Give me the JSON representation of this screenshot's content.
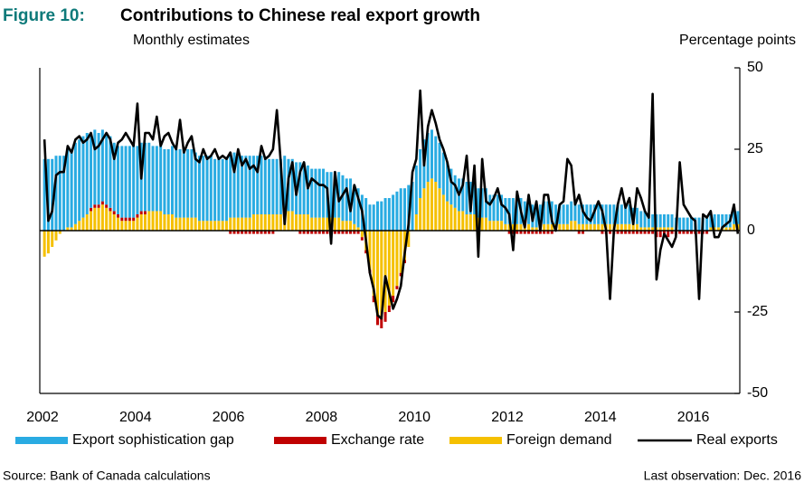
{
  "figure_label": "Figure 10:",
  "chart_data": {
    "type": "bar",
    "stacked": true,
    "title": "Contributions to Chinese real export growth",
    "subtitle": "Monthly estimates",
    "y_axis_label": "Percentage points",
    "ylim": [
      -50,
      50
    ],
    "yticks": [
      -50,
      -25,
      0,
      25,
      50
    ],
    "categories": [
      "2002",
      null,
      null,
      null,
      null,
      null,
      null,
      null,
      null,
      null,
      null,
      null,
      null,
      null,
      null,
      null,
      null,
      null,
      null,
      null,
      null,
      null,
      null,
      null,
      "2004",
      null,
      null,
      null,
      null,
      null,
      null,
      null,
      null,
      null,
      null,
      null,
      null,
      null,
      null,
      null,
      null,
      null,
      null,
      null,
      null,
      null,
      null,
      null,
      "2006",
      null,
      null,
      null,
      null,
      null,
      null,
      null,
      null,
      null,
      null,
      null,
      null,
      null,
      null,
      null,
      null,
      null,
      null,
      null,
      null,
      null,
      null,
      null,
      "2008",
      null,
      null,
      null,
      null,
      null,
      null,
      null,
      null,
      null,
      null,
      null,
      null,
      null,
      null,
      null,
      null,
      null,
      null,
      null,
      null,
      null,
      null,
      null,
      "2010",
      null,
      null,
      null,
      null,
      null,
      null,
      null,
      null,
      null,
      null,
      null,
      null,
      null,
      null,
      null,
      null,
      null,
      null,
      null,
      null,
      null,
      null,
      null,
      "2012",
      null,
      null,
      null,
      null,
      null,
      null,
      null,
      null,
      null,
      null,
      null,
      null,
      null,
      null,
      null,
      null,
      null,
      null,
      null,
      null,
      null,
      null,
      null,
      "2014",
      null,
      null,
      null,
      null,
      null,
      null,
      null,
      null,
      null,
      null,
      null,
      null,
      null,
      null,
      null,
      null,
      null,
      null,
      null,
      null,
      null,
      null,
      null,
      "2016",
      null,
      null,
      null,
      null,
      null,
      null,
      null,
      null,
      null,
      null,
      null
    ],
    "series": [
      {
        "name": "Export sophistication gap",
        "color": "#29abe2",
        "values": [
          22,
          22,
          22,
          23,
          23,
          23,
          24,
          24,
          25,
          25,
          25,
          25,
          23,
          23,
          22,
          22,
          22,
          22,
          21,
          21,
          22,
          22,
          22,
          22,
          21,
          21,
          21,
          21,
          20,
          20,
          20,
          20,
          20,
          21,
          21,
          21,
          21,
          21,
          21,
          20,
          20,
          20,
          20,
          20,
          19,
          19,
          19,
          19,
          20,
          20,
          19,
          19,
          19,
          19,
          18,
          18,
          18,
          17,
          17,
          17,
          17,
          17,
          17,
          16,
          16,
          16,
          16,
          16,
          15,
          15,
          15,
          15,
          15,
          14,
          14,
          14,
          14,
          14,
          13,
          13,
          12,
          12,
          11,
          10,
          8,
          8,
          9,
          9,
          10,
          10,
          11,
          12,
          13,
          13,
          14,
          15,
          15,
          15,
          15,
          15,
          15,
          14,
          14,
          13,
          12,
          11,
          10,
          10,
          10,
          10,
          10,
          9,
          9,
          9,
          9,
          8,
          8,
          8,
          8,
          8,
          8,
          8,
          8,
          8,
          7,
          7,
          7,
          7,
          7,
          7,
          7,
          7,
          6,
          6,
          6,
          6,
          6,
          6,
          6,
          6,
          6,
          6,
          6,
          6,
          6,
          6,
          6,
          6,
          6,
          6,
          6,
          6,
          5,
          5,
          5,
          5,
          4,
          4,
          4,
          4,
          4,
          4,
          4,
          4,
          4,
          4,
          4,
          4,
          4,
          4,
          4,
          4,
          4,
          4,
          4,
          4,
          4,
          4,
          4,
          4
        ]
      },
      {
        "name": "Exchange rate",
        "color": "#c00000",
        "values": [
          0,
          0,
          0,
          0,
          0,
          0,
          0,
          0,
          0,
          0,
          0,
          0,
          1,
          1,
          1,
          1,
          1,
          1,
          1,
          1,
          1,
          1,
          1,
          1,
          1,
          1,
          1,
          0,
          0,
          0,
          0,
          0,
          0,
          0,
          0,
          0,
          0,
          0,
          0,
          0,
          0,
          0,
          0,
          0,
          0,
          0,
          0,
          0,
          -1,
          -1,
          -1,
          -1,
          -1,
          -1,
          -1,
          -1,
          -1,
          -1,
          -1,
          -1,
          0,
          0,
          0,
          0,
          0,
          0,
          -1,
          -1,
          -1,
          -1,
          -1,
          -1,
          -1,
          -1,
          -1,
          -1,
          -1,
          -1,
          -1,
          -1,
          -1,
          -1,
          -1,
          -1,
          -1,
          -2,
          -3,
          -3,
          -3,
          -2,
          -2,
          -1,
          -1,
          -1,
          0,
          0,
          0,
          0,
          0,
          0,
          0,
          0,
          0,
          0,
          0,
          0,
          0,
          0,
          0,
          0,
          0,
          0,
          0,
          0,
          0,
          0,
          0,
          0,
          0,
          0,
          -1,
          -1,
          -1,
          -1,
          -1,
          -1,
          -1,
          -1,
          -1,
          -1,
          -1,
          -1,
          0,
          0,
          0,
          0,
          0,
          0,
          -1,
          -1,
          0,
          0,
          0,
          0,
          -1,
          -1,
          -1,
          -1,
          -1,
          -1,
          -1,
          -1,
          -1,
          -1,
          -1,
          -1,
          -1,
          -1,
          -2,
          -2,
          -2,
          -2,
          -1,
          -1,
          -1,
          -1,
          -1,
          -1,
          -1,
          -1,
          -1,
          -1,
          0,
          0,
          0,
          0,
          0,
          0,
          0,
          0
        ]
      },
      {
        "name": "Foreign demand",
        "color": "#f5c000",
        "values": [
          -8,
          -7,
          -5,
          -3,
          -1,
          0,
          1,
          1,
          2,
          3,
          4,
          5,
          6,
          7,
          7,
          8,
          7,
          6,
          5,
          4,
          3,
          3,
          3,
          3,
          4,
          5,
          5,
          6,
          6,
          6,
          6,
          5,
          5,
          5,
          4,
          4,
          4,
          4,
          4,
          4,
          3,
          3,
          3,
          3,
          3,
          3,
          3,
          3,
          4,
          4,
          4,
          4,
          4,
          4,
          5,
          5,
          5,
          5,
          5,
          5,
          5,
          5,
          6,
          6,
          6,
          5,
          5,
          5,
          5,
          4,
          4,
          4,
          4,
          4,
          4,
          4,
          4,
          3,
          3,
          3,
          2,
          1,
          -2,
          -6,
          -12,
          -20,
          -26,
          -27,
          -25,
          -23,
          -20,
          -17,
          -13,
          -9,
          -5,
          0,
          5,
          10,
          13,
          15,
          16,
          15,
          13,
          11,
          9,
          8,
          7,
          6,
          6,
          5,
          5,
          5,
          4,
          4,
          4,
          3,
          3,
          3,
          3,
          2,
          2,
          2,
          2,
          2,
          2,
          2,
          1,
          1,
          1,
          2,
          2,
          2,
          2,
          2,
          2,
          2,
          3,
          3,
          2,
          2,
          2,
          2,
          2,
          2,
          2,
          2,
          2,
          2,
          2,
          2,
          2,
          2,
          2,
          2,
          1,
          1,
          1,
          1,
          1,
          1,
          1,
          1,
          1,
          0,
          0,
          0,
          0,
          0,
          0,
          0,
          0,
          0,
          1,
          1,
          1,
          1,
          1,
          1,
          2,
          2
        ]
      },
      {
        "name": "Real exports",
        "color": "#000000",
        "type": "line",
        "values": [
          28,
          3,
          6,
          17,
          18,
          18,
          26,
          24,
          28,
          29,
          27,
          28,
          30,
          25,
          26,
          28,
          30,
          28,
          22,
          27,
          28,
          30,
          28,
          26,
          39,
          16,
          30,
          30,
          28,
          35,
          26,
          29,
          30,
          27,
          25,
          34,
          24,
          27,
          29,
          22,
          21,
          25,
          22,
          23,
          25,
          22,
          23,
          22,
          24,
          18,
          25,
          20,
          22,
          19,
          20,
          18,
          26,
          22,
          23,
          25,
          37,
          21,
          2,
          16,
          21,
          11,
          18,
          21,
          13,
          16,
          15,
          14,
          14,
          13,
          -4,
          18,
          9,
          11,
          13,
          6,
          14,
          10,
          6,
          -3,
          -13,
          -18,
          -26,
          -27,
          -14,
          -19,
          -24,
          -21,
          -17,
          -7,
          2,
          18,
          22,
          43,
          20,
          32,
          37,
          33,
          28,
          25,
          21,
          15,
          14,
          11,
          14,
          23,
          6,
          20,
          -8,
          22,
          9,
          8,
          10,
          13,
          8,
          7,
          5,
          -6,
          12,
          6,
          1,
          11,
          3,
          9,
          0,
          11,
          11,
          3,
          0,
          8,
          9,
          22,
          20,
          8,
          11,
          6,
          4,
          3,
          6,
          9,
          6,
          0,
          -21,
          0,
          8,
          13,
          7,
          10,
          2,
          13,
          10,
          6,
          4,
          42,
          -15,
          -6,
          -1,
          -3,
          -5,
          -2,
          21,
          8,
          6,
          4,
          3,
          -21,
          5,
          4,
          6,
          -2,
          -2,
          1,
          2,
          3,
          8,
          -1
        ]
      }
    ]
  },
  "source": "Source: Bank of Canada calculations",
  "note": "Last observation: Dec. 2016"
}
